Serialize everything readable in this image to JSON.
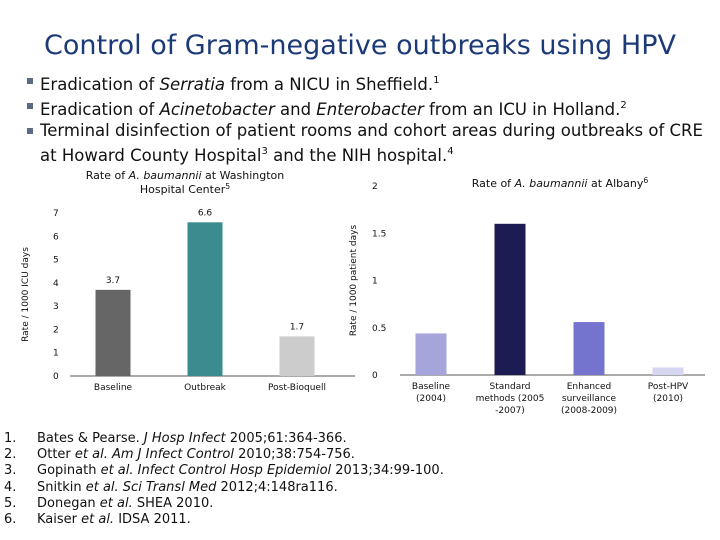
{
  "title": "Control of Gram-negative outbreaks using HPV",
  "bullets": [
    {
      "parts": [
        {
          "t": "Eradication of "
        },
        {
          "t": "Serratia",
          "i": true
        },
        {
          "t": " from a NICU in Sheffield."
        }
      ],
      "sup": "1"
    },
    {
      "parts": [
        {
          "t": "Eradication of "
        },
        {
          "t": "Acinetobacter",
          "i": true
        },
        {
          "t": " and "
        },
        {
          "t": "Enterobacter",
          "i": true
        },
        {
          "t": " from an ICU in Holland."
        }
      ],
      "sup": "2"
    },
    {
      "parts": [
        {
          "t": "Terminal disinfection of patient rooms and cohort areas during outbreaks of CRE at Howard County Hospital"
        },
        {
          "t": "3",
          "sup": true
        },
        {
          "t": " and the NIH hospital."
        }
      ],
      "sup": "4"
    }
  ],
  "chart_data": [
    {
      "type": "bar",
      "title_lines": [
        [
          {
            "t": "Rate of "
          },
          {
            "t": "A. baumannii",
            "i": true
          },
          {
            "t": " at Washington"
          }
        ],
        [
          {
            "t": "Hospital Center"
          },
          {
            "t": "5",
            "sup": true
          }
        ]
      ],
      "ylabel": "Rate / 1000 ICU days",
      "categories": [
        [
          "Baseline"
        ],
        [
          "Outbreak"
        ],
        [
          "Post-Bioquell"
        ]
      ],
      "values": [
        3.7,
        6.6,
        1.7
      ],
      "data_labels": [
        "3.7",
        "6.6",
        "1.7"
      ],
      "colors": [
        "#666666",
        "#3a8c8f",
        "#cccccc"
      ],
      "ylim": [
        0,
        7
      ],
      "yticks": [
        "0",
        "1",
        "2",
        "3",
        "4",
        "5",
        "6",
        "7"
      ]
    },
    {
      "type": "bar",
      "title_lines": [
        [
          {
            "t": "Rate of "
          },
          {
            "t": "A. baumannii",
            "i": true
          },
          {
            "t": " at Albany"
          },
          {
            "t": "6",
            "sup": true
          }
        ]
      ],
      "ylabel": "Rate / 1000 patient days",
      "categories": [
        [
          "Baseline",
          "(2004)"
        ],
        [
          "Standard",
          "methods (2005",
          "-2007)"
        ],
        [
          "Enhanced",
          "surveillance",
          "(2008-2009)"
        ],
        [
          "Post-HPV",
          "(2010)"
        ]
      ],
      "values": [
        0.44,
        1.6,
        0.56,
        0.08
      ],
      "colors": [
        "#a5a5dc",
        "#1c1c52",
        "#7474cf",
        "#d6d6f0"
      ],
      "ylim": [
        0,
        2
      ],
      "yticks": [
        "0",
        "0.5",
        "1",
        "1.5",
        "2"
      ]
    }
  ],
  "references": [
    {
      "num": "1.",
      "parts": [
        {
          "t": "Bates & Pearse. "
        },
        {
          "t": "J Hosp Infect",
          "i": true
        },
        {
          "t": " 2005;61:364-366."
        }
      ]
    },
    {
      "num": "2.",
      "parts": [
        {
          "t": "Otter "
        },
        {
          "t": "et al. Am J Infect Control",
          "i": true
        },
        {
          "t": " 2010;38:754-756."
        }
      ]
    },
    {
      "num": "3.",
      "parts": [
        {
          "t": "Gopinath "
        },
        {
          "t": "et al. Infect Control Hosp Epidemiol",
          "i": true
        },
        {
          "t": " 2013;34:99-100."
        }
      ]
    },
    {
      "num": "4.",
      "parts": [
        {
          "t": "Snitkin "
        },
        {
          "t": "et al. Sci Transl Med",
          "i": true
        },
        {
          "t": " 2012;4:148ra116."
        }
      ]
    },
    {
      "num": "5.",
      "parts": [
        {
          "t": "Donegan "
        },
        {
          "t": "et al.",
          "i": true
        },
        {
          "t": " SHEA 2010."
        }
      ]
    },
    {
      "num": "6.",
      "parts": [
        {
          "t": "Kaiser "
        },
        {
          "t": "et al.",
          "i": true
        },
        {
          "t": " IDSA 2011."
        }
      ]
    }
  ]
}
